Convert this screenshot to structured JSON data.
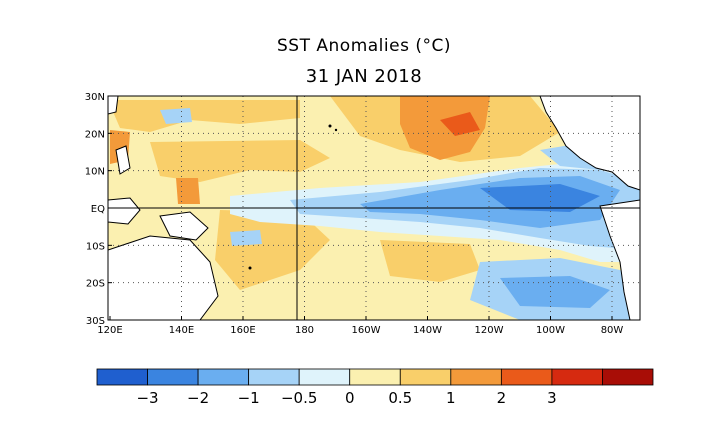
{
  "title": "SST Anomalies (°C)",
  "date": "31 JAN 2018",
  "lat_labels": [
    "30N",
    "20N",
    "10N",
    "EQ",
    "10S",
    "20S",
    "30S"
  ],
  "lon_labels": [
    "120E",
    "140E",
    "160E",
    "180",
    "160W",
    "140W",
    "120W",
    "100W",
    "80W"
  ],
  "colorbar": {
    "colors": [
      "#1f5fcf",
      "#3a84e0",
      "#6aaef0",
      "#a6d3f7",
      "#dff3fb",
      "#fbf0b0",
      "#f9cf6a",
      "#f39a3a",
      "#ea5a1a",
      "#d62a10",
      "#a80d06"
    ],
    "labels": [
      "−3",
      "−2",
      "−1",
      "−0.5",
      "0",
      "0.5",
      "1",
      "2",
      "3"
    ]
  },
  "land_color": "#ffffff"
}
